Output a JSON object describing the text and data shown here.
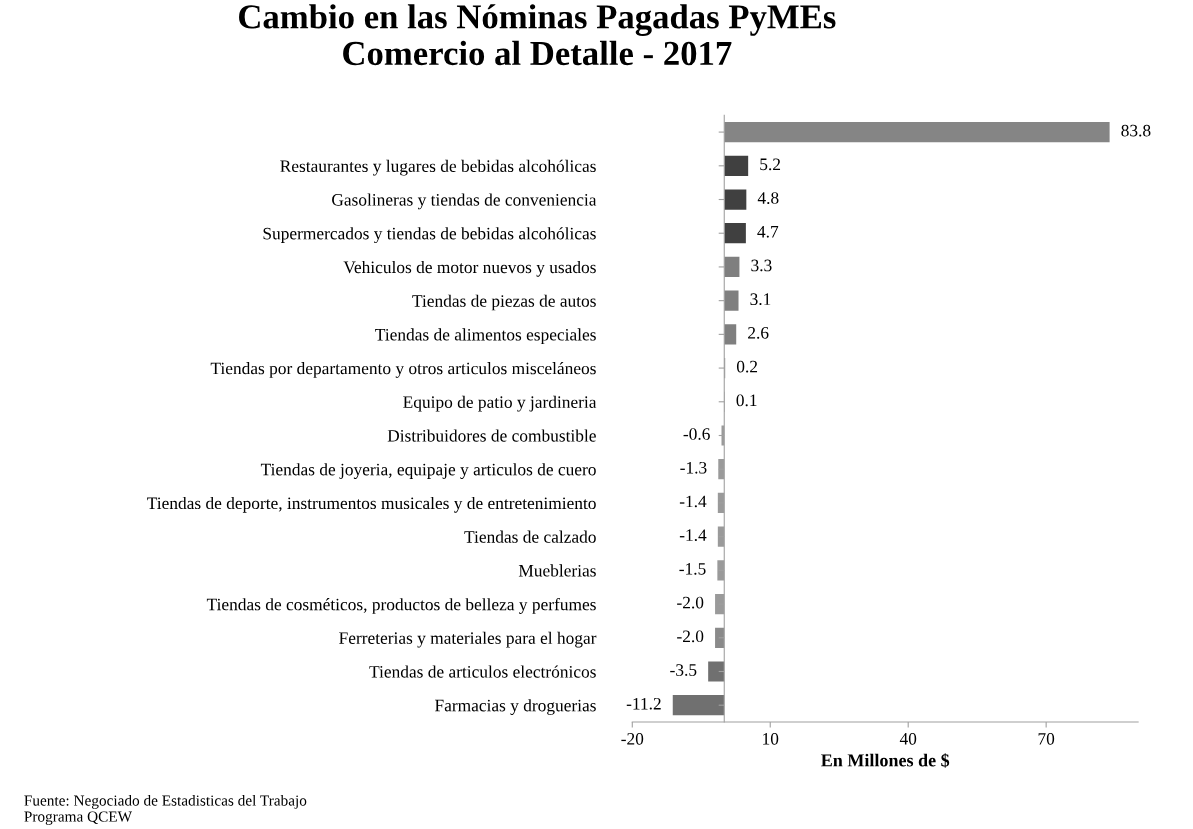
{
  "chart_data": {
    "type": "bar",
    "orientation": "horizontal",
    "title": "Cambio en las Nóminas Pagadas PyMEs\nComercio al Detalle - 2017",
    "xlabel": "En Millones de $",
    "categories": [
      null,
      "Restaurantes y lugares de bebidas alcohólicas",
      "Gasolineras y tiendas de conveniencia",
      "Supermercados y tiendas de bebidas alcohólicas",
      "Vehiculos de motor nuevos y usados",
      "Tiendas de piezas de autos",
      "Tiendas de alimentos especiales",
      "Tiendas por departamento y otros articulos misceláneos",
      "Equipo de patio y jardineria",
      "Distribuidores de combustible",
      "Tiendas de joyeria, equipaje y articulos de cuero",
      "Tiendas de deporte, instrumentos musicales y de entretenimiento",
      "Tiendas de calzado",
      "Mueblerias",
      "Tiendas de cosméticos, productos de belleza y perfumes",
      "Ferreterias y materiales para el hogar",
      "Tiendas de articulos electrónicos",
      "Farmacias y droguerias"
    ],
    "values": [
      83.8,
      5.2,
      4.8,
      4.7,
      3.3,
      3.1,
      2.6,
      0.2,
      0.1,
      -0.6,
      -1.3,
      -1.4,
      -1.4,
      -1.5,
      -2.0,
      -2.0,
      -3.5,
      -11.2
    ],
    "value_labels": [
      "83.8",
      "5.2",
      "4.8",
      "4.7",
      "3.3",
      "3.1",
      "2.6",
      "0.2",
      "0.1",
      "-0.6",
      "-1.3",
      "-1.4",
      "-1.4",
      "-1.5",
      "-2.0",
      "-2.0",
      "-3.5",
      "-11.2"
    ],
    "colors": [
      "#858585",
      "#404040",
      "#404040",
      "#404040",
      "#7f7f7f",
      "#7f7f7f",
      "#7f7f7f",
      "#7f7f7f",
      "#7f7f7f",
      "#9a9a9a",
      "#9a9a9a",
      "#9a9a9a",
      "#9a9a9a",
      "#9a9a9a",
      "#9a9a9a",
      "#8a8a8a",
      "#707070",
      "#707070"
    ],
    "xlim": [
      -20,
      90
    ],
    "xticks": [
      -20,
      10,
      40,
      70
    ],
    "grid": false,
    "annotations": [
      "Fuente: Negociado de Estadisticas del Trabajo\nPrograma QCEW"
    ]
  }
}
